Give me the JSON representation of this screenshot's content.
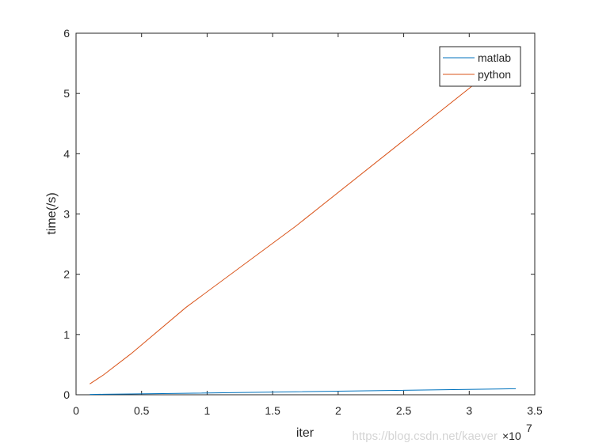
{
  "chart_data": {
    "type": "line",
    "title": "",
    "xlabel": "iter",
    "ylabel": "time(/s)",
    "xlim": [
      0,
      35000000
    ],
    "ylim": [
      0,
      6
    ],
    "x_exponent_label": "×10",
    "x_exponent": "7",
    "xticks": [
      "0",
      "0.5",
      "1",
      "1.5",
      "2",
      "2.5",
      "3",
      "3.5"
    ],
    "yticks": [
      "0",
      "1",
      "2",
      "3",
      "4",
      "5",
      "6"
    ],
    "grid": false,
    "legend_position": "top-right",
    "x": [
      1048576,
      2097152,
      4194304,
      8388608,
      16777216,
      33554432
    ],
    "series": [
      {
        "name": "matlab",
        "color": "#0072BD",
        "values": [
          0.005,
          0.008,
          0.013,
          0.025,
          0.05,
          0.1
        ]
      },
      {
        "name": "python",
        "color": "#D95319",
        "values": [
          0.18,
          0.33,
          0.68,
          1.45,
          2.8,
          5.7
        ]
      }
    ]
  },
  "watermark": "https://blog.csdn.net/kaever"
}
